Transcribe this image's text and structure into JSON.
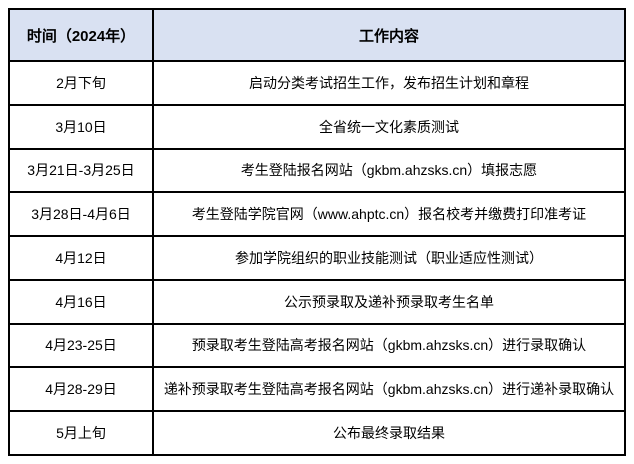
{
  "table": {
    "colors": {
      "header_bg": "#d9e1f2",
      "border": "#000000",
      "text": "#000000"
    },
    "headers": {
      "time": "时间（2024年）",
      "content": "工作内容"
    },
    "rows": [
      {
        "time": "2月下旬",
        "content": "启动分类考试招生工作，发布招生计划和章程"
      },
      {
        "time": "3月10日",
        "content": "全省统一文化素质测试"
      },
      {
        "time": "3月21日-3月25日",
        "content": "考生登陆报名网站（gkbm.ahzsks.cn）填报志愿"
      },
      {
        "time": "3月28日-4月6日",
        "content": "考生登陆学院官网（www.ahptc.cn）报名校考并缴费打印准考证"
      },
      {
        "time": "4月12日",
        "content": "参加学院组织的职业技能测试（职业适应性测试）"
      },
      {
        "time": "4月16日",
        "content": "公示预录取及递补预录取考生名单"
      },
      {
        "time": "4月23-25日",
        "content": "预录取考生登陆高考报名网站（gkbm.ahzsks.cn）进行录取确认"
      },
      {
        "time": "4月28-29日",
        "content": "递补预录取考生登陆高考报名网站（gkbm.ahzsks.cn）进行递补录取确认"
      },
      {
        "time": "5月上旬",
        "content": "公布最终录取结果"
      }
    ]
  }
}
